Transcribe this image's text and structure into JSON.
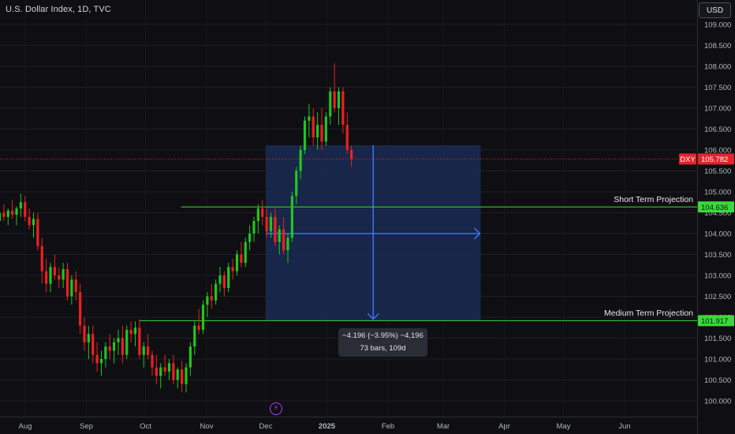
{
  "header": {
    "symbol_title": "U.S. Dollar Index, 1D, TVC",
    "currency": "USD"
  },
  "chart_data": {
    "type": "candlestick",
    "title": "U.S. Dollar Index, 1D, TVC",
    "y_ticks": [
      "100.000",
      "100.500",
      "101.000",
      "101.500",
      "102.000",
      "102.500",
      "103.000",
      "103.500",
      "104.000",
      "104.500",
      "105.000",
      "105.500",
      "106.000",
      "106.500",
      "107.000",
      "107.500",
      "108.000",
      "108.500",
      "109.000"
    ],
    "ylim": [
      99.85,
      109.35
    ],
    "x_ticks": [
      {
        "label": "Aug",
        "day": 0,
        "bold": false
      },
      {
        "label": "Sep",
        "day": 31,
        "bold": false
      },
      {
        "label": "Oct",
        "day": 61,
        "bold": false
      },
      {
        "label": "Nov",
        "day": 92,
        "bold": false
      },
      {
        "label": "Dec",
        "day": 122,
        "bold": false
      },
      {
        "label": "2025",
        "day": 153,
        "bold": true
      },
      {
        "label": "Feb",
        "day": 184,
        "bold": false
      },
      {
        "label": "Mar",
        "day": 212,
        "bold": false
      },
      {
        "label": "Apr",
        "day": 243,
        "bold": false
      },
      {
        "label": "May",
        "day": 273,
        "bold": false
      },
      {
        "label": "Jun",
        "day": 304,
        "bold": false
      }
    ],
    "first_bar_day": -13,
    "bars_ohlc": [
      [
        104.3,
        104.6,
        104.1,
        104.5
      ],
      [
        104.5,
        104.7,
        104.3,
        104.4
      ],
      [
        104.4,
        104.6,
        104.2,
        104.55
      ],
      [
        104.55,
        104.8,
        104.35,
        104.45
      ],
      [
        104.45,
        104.65,
        104.2,
        104.6
      ],
      [
        104.6,
        104.95,
        104.4,
        104.75
      ],
      [
        104.75,
        104.9,
        104.3,
        104.4
      ],
      [
        104.4,
        104.6,
        104.1,
        104.2
      ],
      [
        104.2,
        104.5,
        103.9,
        104.35
      ],
      [
        104.35,
        104.5,
        103.6,
        103.7
      ],
      [
        103.7,
        103.9,
        102.8,
        103.1
      ],
      [
        103.1,
        103.4,
        102.6,
        102.8
      ],
      [
        102.8,
        103.3,
        102.6,
        103.2
      ],
      [
        103.2,
        103.5,
        102.9,
        103.0
      ],
      [
        103.0,
        103.2,
        102.7,
        102.9
      ],
      [
        102.9,
        103.3,
        102.7,
        103.15
      ],
      [
        103.15,
        103.3,
        102.4,
        102.5
      ],
      [
        102.5,
        103.0,
        102.3,
        102.9
      ],
      [
        102.9,
        103.1,
        102.4,
        102.6
      ],
      [
        102.6,
        102.8,
        101.6,
        101.8
      ],
      [
        101.8,
        102.0,
        101.2,
        101.4
      ],
      [
        101.4,
        101.8,
        101.0,
        101.6
      ],
      [
        101.6,
        101.8,
        100.9,
        101.1
      ],
      [
        101.1,
        101.4,
        100.7,
        100.9
      ],
      [
        100.9,
        101.2,
        100.6,
        101.0
      ],
      [
        101.0,
        101.4,
        100.8,
        101.3
      ],
      [
        101.3,
        101.6,
        101.0,
        101.2
      ],
      [
        101.2,
        101.5,
        100.9,
        101.4
      ],
      [
        101.4,
        101.7,
        101.1,
        101.5
      ],
      [
        101.5,
        101.8,
        100.9,
        101.1
      ],
      [
        101.1,
        101.8,
        101.0,
        101.7
      ],
      [
        101.7,
        101.9,
        101.4,
        101.6
      ],
      [
        101.6,
        101.9,
        101.3,
        101.75
      ],
      [
        101.75,
        101.95,
        101.0,
        101.1
      ],
      [
        101.1,
        101.4,
        100.8,
        101.3
      ],
      [
        101.3,
        101.6,
        101.0,
        101.1
      ],
      [
        101.1,
        101.2,
        100.6,
        100.8
      ],
      [
        100.8,
        101.1,
        100.4,
        100.6
      ],
      [
        100.6,
        100.9,
        100.3,
        100.8
      ],
      [
        100.8,
        101.1,
        100.6,
        100.7
      ],
      [
        100.7,
        101.0,
        100.5,
        100.9
      ],
      [
        100.9,
        101.1,
        100.4,
        100.5
      ],
      [
        100.5,
        100.8,
        100.3,
        100.75
      ],
      [
        100.75,
        100.95,
        100.2,
        100.4
      ],
      [
        100.4,
        100.9,
        100.2,
        100.8
      ],
      [
        100.8,
        101.4,
        100.6,
        101.3
      ],
      [
        101.3,
        101.9,
        101.1,
        101.8
      ],
      [
        101.8,
        102.2,
        101.6,
        101.7
      ],
      [
        101.7,
        102.4,
        101.6,
        102.3
      ],
      [
        102.3,
        102.6,
        102.0,
        102.5
      ],
      [
        102.5,
        102.8,
        102.2,
        102.4
      ],
      [
        102.4,
        102.9,
        102.3,
        102.8
      ],
      [
        102.8,
        103.2,
        102.6,
        103.0
      ],
      [
        103.0,
        103.1,
        102.5,
        102.7
      ],
      [
        102.7,
        103.3,
        102.6,
        103.2
      ],
      [
        103.2,
        103.4,
        102.9,
        103.1
      ],
      [
        103.1,
        103.6,
        103.0,
        103.5
      ],
      [
        103.5,
        103.8,
        103.2,
        103.3
      ],
      [
        103.3,
        103.9,
        103.2,
        103.8
      ],
      [
        103.8,
        104.2,
        103.6,
        104.0
      ],
      [
        104.0,
        104.4,
        103.8,
        104.3
      ],
      [
        104.3,
        104.7,
        104.0,
        104.6
      ],
      [
        104.6,
        104.8,
        104.2,
        104.4
      ],
      [
        104.4,
        104.6,
        103.9,
        104.05
      ],
      [
        104.05,
        104.5,
        103.9,
        104.4
      ],
      [
        104.4,
        104.6,
        103.7,
        103.8
      ],
      [
        103.8,
        104.2,
        103.5,
        104.1
      ],
      [
        104.1,
        104.4,
        103.5,
        103.6
      ],
      [
        103.6,
        104.0,
        103.3,
        103.9
      ],
      [
        103.9,
        105.0,
        103.8,
        104.9
      ],
      [
        104.9,
        105.6,
        104.7,
        105.5
      ],
      [
        105.5,
        106.1,
        105.3,
        106.0
      ],
      [
        106.0,
        106.8,
        105.9,
        106.7
      ],
      [
        106.7,
        107.1,
        106.3,
        106.8
      ],
      [
        106.8,
        107.0,
        106.1,
        106.3
      ],
      [
        106.3,
        106.9,
        106.0,
        106.6
      ],
      [
        106.6,
        107.0,
        106.0,
        106.2
      ],
      [
        106.2,
        106.9,
        106.1,
        106.8
      ],
      [
        106.8,
        107.5,
        106.6,
        107.4
      ],
      [
        107.4,
        108.07,
        106.9,
        107.0
      ],
      [
        107.0,
        107.5,
        106.6,
        107.4
      ],
      [
        107.4,
        107.5,
        106.4,
        106.6
      ],
      [
        106.6,
        106.9,
        105.9,
        106.0
      ],
      [
        106.0,
        106.1,
        105.6,
        105.78
      ]
    ],
    "price_axis_labels": {
      "symbol": "DXY",
      "current_price": "105.782",
      "short_term_price": "104.636",
      "medium_term_price": "101.917"
    },
    "current_value": 105.782,
    "projections": {
      "short_term_label": "Short Term Projection",
      "short_term_value": 104.636,
      "short_term_start_day": 79,
      "medium_term_label": "Medium Term Projection",
      "medium_term_value": 101.917,
      "medium_term_start_day": 58
    },
    "measure": {
      "start_day": 122,
      "end_day": 231,
      "top_value": 106.113,
      "bottom_value": 101.917,
      "line1": "−4.196 (−3.95%) −4,196",
      "line2": "73 bars, 109d"
    },
    "arrow_value": 104.0,
    "colors": {
      "up": "#22c51e",
      "down": "#ef1f1f",
      "projection": "#3bd83b",
      "measure_fill": "#1a2a55",
      "measure_line": "#3f71f0",
      "price_tag": "#e6232b"
    },
    "event_icon": "lightning-icon"
  }
}
